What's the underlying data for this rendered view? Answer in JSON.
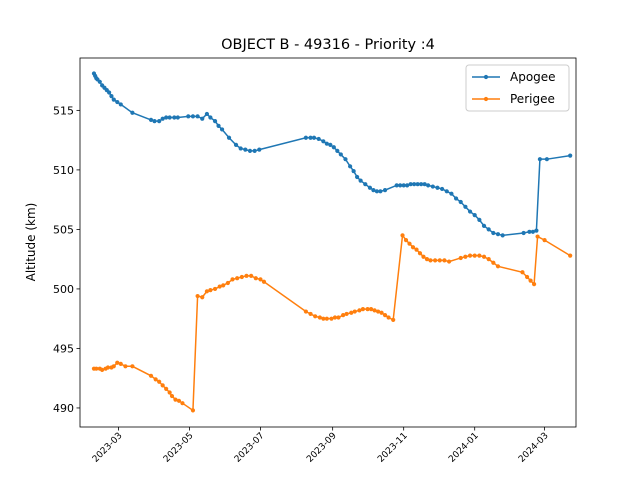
{
  "chart_data": {
    "type": "line",
    "title": "OBJECT B - 49316 - Priority :4",
    "xlabel": "",
    "ylabel": "Altitude (km)",
    "xlim": [
      "2023-01-27",
      "2024-03-28"
    ],
    "ylim": [
      488.4,
      519.4
    ],
    "yticks": [
      490,
      495,
      500,
      505,
      510,
      515
    ],
    "xticks": [
      "2023-03-01",
      "2023-05-01",
      "2023-07-01",
      "2023-09-01",
      "2023-11-01",
      "2024-01-01",
      "2024-03-01"
    ],
    "xtick_labels": [
      "2023-03",
      "2023-05",
      "2023-07",
      "2023-09",
      "2023-11",
      "2024-01",
      "2024-03"
    ],
    "grid": false,
    "legend": "top-right",
    "series": [
      {
        "name": "Apogee",
        "color": "#1f77b4",
        "points": [
          [
            "2023-02-08",
            518.1
          ],
          [
            "2023-02-09",
            517.9
          ],
          [
            "2023-02-10",
            517.7
          ],
          [
            "2023-02-11",
            517.6
          ],
          [
            "2023-02-13",
            517.4
          ],
          [
            "2023-02-15",
            517.1
          ],
          [
            "2023-02-17",
            516.9
          ],
          [
            "2023-02-19",
            516.7
          ],
          [
            "2023-02-21",
            516.5
          ],
          [
            "2023-02-23",
            516.2
          ],
          [
            "2023-02-25",
            515.9
          ],
          [
            "2023-02-28",
            515.7
          ],
          [
            "2023-03-03",
            515.5
          ],
          [
            "2023-03-13",
            514.8
          ],
          [
            "2023-03-29",
            514.2
          ],
          [
            "2023-04-01",
            514.1
          ],
          [
            "2023-04-05",
            514.1
          ],
          [
            "2023-04-08",
            514.3
          ],
          [
            "2023-04-11",
            514.4
          ],
          [
            "2023-04-14",
            514.4
          ],
          [
            "2023-04-18",
            514.4
          ],
          [
            "2023-04-21",
            514.4
          ],
          [
            "2023-04-30",
            514.5
          ],
          [
            "2023-05-04",
            514.5
          ],
          [
            "2023-05-08",
            514.5
          ],
          [
            "2023-05-12",
            514.3
          ],
          [
            "2023-05-16",
            514.7
          ],
          [
            "2023-05-19",
            514.4
          ],
          [
            "2023-05-23",
            514.1
          ],
          [
            "2023-05-26",
            513.7
          ],
          [
            "2023-05-29",
            513.4
          ],
          [
            "2023-06-04",
            512.7
          ],
          [
            "2023-06-10",
            512.1
          ],
          [
            "2023-06-14",
            511.8
          ],
          [
            "2023-06-18",
            511.7
          ],
          [
            "2023-06-22",
            511.6
          ],
          [
            "2023-06-26",
            511.6
          ],
          [
            "2023-06-30",
            511.7
          ],
          [
            "2023-08-09",
            512.7
          ],
          [
            "2023-08-13",
            512.7
          ],
          [
            "2023-08-16",
            512.7
          ],
          [
            "2023-08-20",
            512.6
          ],
          [
            "2023-08-24",
            512.4
          ],
          [
            "2023-08-27",
            512.2
          ],
          [
            "2023-08-30",
            512.1
          ],
          [
            "2023-09-02",
            511.9
          ],
          [
            "2023-09-05",
            511.6
          ],
          [
            "2023-09-08",
            511.3
          ],
          [
            "2023-09-12",
            510.9
          ],
          [
            "2023-09-16",
            510.3
          ],
          [
            "2023-09-19",
            509.9
          ],
          [
            "2023-09-22",
            509.4
          ],
          [
            "2023-09-25",
            509.1
          ],
          [
            "2023-09-29",
            508.8
          ],
          [
            "2023-10-03",
            508.5
          ],
          [
            "2023-10-06",
            508.3
          ],
          [
            "2023-10-09",
            508.2
          ],
          [
            "2023-10-12",
            508.2
          ],
          [
            "2023-10-16",
            508.3
          ],
          [
            "2023-10-26",
            508.7
          ],
          [
            "2023-10-29",
            508.7
          ],
          [
            "2023-11-01",
            508.7
          ],
          [
            "2023-11-04",
            508.7
          ],
          [
            "2023-11-07",
            508.8
          ],
          [
            "2023-11-10",
            508.8
          ],
          [
            "2023-11-13",
            508.8
          ],
          [
            "2023-11-16",
            508.8
          ],
          [
            "2023-11-19",
            508.8
          ],
          [
            "2023-11-22",
            508.7
          ],
          [
            "2023-11-26",
            508.6
          ],
          [
            "2023-11-30",
            508.5
          ],
          [
            "2023-12-04",
            508.4
          ],
          [
            "2023-12-08",
            508.2
          ],
          [
            "2023-12-12",
            508.0
          ],
          [
            "2023-12-16",
            507.6
          ],
          [
            "2023-12-20",
            507.3
          ],
          [
            "2023-12-24",
            506.9
          ],
          [
            "2023-12-28",
            506.5
          ],
          [
            "2024-01-01",
            506.2
          ],
          [
            "2024-01-05",
            505.8
          ],
          [
            "2024-01-09",
            505.3
          ],
          [
            "2024-01-13",
            505.0
          ],
          [
            "2024-01-17",
            504.7
          ],
          [
            "2024-01-21",
            504.6
          ],
          [
            "2024-01-25",
            504.5
          ],
          [
            "2024-02-12",
            504.7
          ],
          [
            "2024-02-17",
            504.8
          ],
          [
            "2024-02-20",
            504.8
          ],
          [
            "2024-02-23",
            504.9
          ],
          [
            "2024-02-26",
            510.9
          ],
          [
            "2024-03-03",
            510.9
          ],
          [
            "2024-03-23",
            511.2
          ]
        ]
      },
      {
        "name": "Perigee",
        "color": "#ff7f0e",
        "points": [
          [
            "2023-02-08",
            493.3
          ],
          [
            "2023-02-10",
            493.3
          ],
          [
            "2023-02-13",
            493.3
          ],
          [
            "2023-02-15",
            493.2
          ],
          [
            "2023-02-18",
            493.3
          ],
          [
            "2023-02-20",
            493.4
          ],
          [
            "2023-02-23",
            493.4
          ],
          [
            "2023-02-25",
            493.5
          ],
          [
            "2023-02-28",
            493.8
          ],
          [
            "2023-03-03",
            493.7
          ],
          [
            "2023-03-07",
            493.5
          ],
          [
            "2023-03-13",
            493.5
          ],
          [
            "2023-03-29",
            492.7
          ],
          [
            "2023-04-02",
            492.4
          ],
          [
            "2023-04-05",
            492.2
          ],
          [
            "2023-04-08",
            491.9
          ],
          [
            "2023-04-11",
            491.6
          ],
          [
            "2023-04-14",
            491.3
          ],
          [
            "2023-04-16",
            491.0
          ],
          [
            "2023-04-19",
            490.7
          ],
          [
            "2023-04-22",
            490.6
          ],
          [
            "2023-04-25",
            490.4
          ],
          [
            "2023-05-04",
            489.8
          ],
          [
            "2023-05-08",
            499.4
          ],
          [
            "2023-05-12",
            499.3
          ],
          [
            "2023-05-16",
            499.8
          ],
          [
            "2023-05-19",
            499.9
          ],
          [
            "2023-05-23",
            500.0
          ],
          [
            "2023-05-27",
            500.2
          ],
          [
            "2023-05-30",
            500.3
          ],
          [
            "2023-06-03",
            500.5
          ],
          [
            "2023-06-07",
            500.8
          ],
          [
            "2023-06-11",
            500.9
          ],
          [
            "2023-06-15",
            501.0
          ],
          [
            "2023-06-19",
            501.1
          ],
          [
            "2023-06-23",
            501.1
          ],
          [
            "2023-06-27",
            500.9
          ],
          [
            "2023-07-01",
            500.8
          ],
          [
            "2023-07-04",
            500.6
          ],
          [
            "2023-08-09",
            498.1
          ],
          [
            "2023-08-13",
            497.9
          ],
          [
            "2023-08-17",
            497.7
          ],
          [
            "2023-08-21",
            497.6
          ],
          [
            "2023-08-24",
            497.5
          ],
          [
            "2023-08-27",
            497.5
          ],
          [
            "2023-08-31",
            497.5
          ],
          [
            "2023-09-03",
            497.6
          ],
          [
            "2023-09-06",
            497.6
          ],
          [
            "2023-09-10",
            497.8
          ],
          [
            "2023-09-13",
            497.9
          ],
          [
            "2023-09-17",
            498.0
          ],
          [
            "2023-09-20",
            498.1
          ],
          [
            "2023-09-24",
            498.2
          ],
          [
            "2023-09-27",
            498.3
          ],
          [
            "2023-10-01",
            498.3
          ],
          [
            "2023-10-04",
            498.3
          ],
          [
            "2023-10-07",
            498.2
          ],
          [
            "2023-10-10",
            498.1
          ],
          [
            "2023-10-13",
            498.0
          ],
          [
            "2023-10-16",
            497.8
          ],
          [
            "2023-10-19",
            497.6
          ],
          [
            "2023-10-23",
            497.4
          ],
          [
            "2023-10-31",
            504.5
          ],
          [
            "2023-11-03",
            504.1
          ],
          [
            "2023-11-06",
            503.8
          ],
          [
            "2023-11-09",
            503.5
          ],
          [
            "2023-11-12",
            503.3
          ],
          [
            "2023-11-15",
            503.0
          ],
          [
            "2023-11-18",
            502.7
          ],
          [
            "2023-11-21",
            502.5
          ],
          [
            "2023-11-24",
            502.4
          ],
          [
            "2023-11-28",
            502.4
          ],
          [
            "2023-12-02",
            502.4
          ],
          [
            "2023-12-06",
            502.4
          ],
          [
            "2023-12-10",
            502.3
          ],
          [
            "2023-12-20",
            502.6
          ],
          [
            "2023-12-24",
            502.7
          ],
          [
            "2023-12-28",
            502.8
          ],
          [
            "2024-01-01",
            502.8
          ],
          [
            "2024-01-05",
            502.8
          ],
          [
            "2024-01-09",
            502.7
          ],
          [
            "2024-01-13",
            502.5
          ],
          [
            "2024-01-17",
            502.2
          ],
          [
            "2024-01-21",
            501.9
          ],
          [
            "2024-02-11",
            501.4
          ],
          [
            "2024-02-15",
            501.0
          ],
          [
            "2024-02-18",
            500.7
          ],
          [
            "2024-02-21",
            500.4
          ],
          [
            "2024-02-24",
            504.4
          ],
          [
            "2024-03-01",
            504.1
          ],
          [
            "2024-03-23",
            502.8
          ]
        ]
      }
    ]
  }
}
